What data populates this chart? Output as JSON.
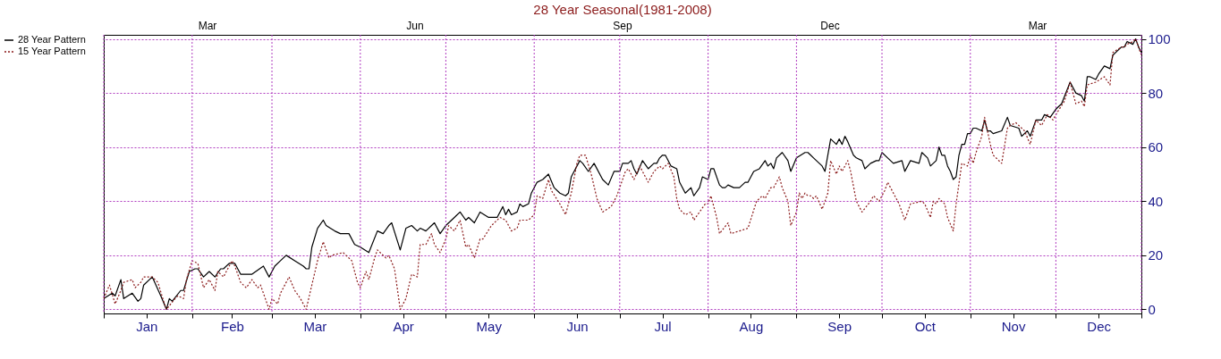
{
  "chart_data": {
    "type": "line",
    "title": "28 Year Seasonal(1981-2008)",
    "xlim": [
      "--01-01",
      "--12-31"
    ],
    "xticks": [
      {
        "value": "--01-01",
        "label": null
      },
      {
        "value": "--01-16",
        "label": "Jan"
      },
      {
        "value": "--02-01",
        "label": null
      },
      {
        "value": "--02-15",
        "label": "Feb"
      },
      {
        "value": "--03-01",
        "label": null
      },
      {
        "value": "--03-16",
        "label": "Mar"
      },
      {
        "value": "--04-01",
        "label": null
      },
      {
        "value": "--04-16",
        "label": "Apr"
      },
      {
        "value": "--05-01",
        "label": null
      },
      {
        "value": "--05-16",
        "label": "May"
      },
      {
        "value": "--06-01",
        "label": null
      },
      {
        "value": "--06-16",
        "label": "Jun"
      },
      {
        "value": "--07-01",
        "label": null
      },
      {
        "value": "--07-16",
        "label": "Jul"
      },
      {
        "value": "--08-01",
        "label": null
      },
      {
        "value": "--08-16",
        "label": "Aug"
      },
      {
        "value": "--09-01",
        "label": null
      },
      {
        "value": "--09-16",
        "label": "Sep"
      },
      {
        "value": "--10-01",
        "label": null
      },
      {
        "value": "--10-16",
        "label": "Oct"
      },
      {
        "value": "--11-01",
        "label": null
      },
      {
        "value": "--11-16",
        "label": "Nov"
      },
      {
        "value": "--12-01",
        "label": null
      },
      {
        "value": "--12-16",
        "label": "Dec"
      },
      {
        "value": "--12-31",
        "label": null
      }
    ],
    "annotations": [
      "Mar",
      "Jun",
      "Sep",
      "Dec",
      "Mar"
    ],
    "ylim": [
      -1.5,
      101.5
    ],
    "yticks": [
      0,
      20,
      40,
      60,
      80,
      100
    ],
    "grid": true,
    "legend": "left",
    "series": [
      {
        "name": "28 Year Pattern",
        "color": "#000000",
        "line_style": "solid",
        "x": [
          "--01-01",
          "--01-04",
          "--01-05",
          "--01-07",
          "--01-08",
          "--01-11",
          "--01-13",
          "--01-14",
          "--01-15",
          "--01-18",
          "--01-21",
          "--01-23",
          "--01-24",
          "--01-25",
          "--01-28",
          "--01-29",
          "--01-31",
          "--02-02",
          "--02-03",
          "--02-05",
          "--02-07",
          "--02-09",
          "--02-11",
          "--02-12",
          "--02-14",
          "--02-16",
          "--02-18",
          "--02-22",
          "--02-26",
          "--02-28",
          "--03-02",
          "--03-04",
          "--03-06",
          "--03-09",
          "--03-12",
          "--03-13",
          "--03-14",
          "--03-15",
          "--03-17",
          "--03-19",
          "--03-20",
          "--03-23",
          "--03-25",
          "--03-28",
          "--03-30",
          "--04-01",
          "--04-04",
          "--04-07",
          "--04-09",
          "--04-11",
          "--04-12",
          "--04-15",
          "--04-17",
          "--04-19",
          "--04-21",
          "--04-22",
          "--04-24",
          "--04-26",
          "--04-27",
          "--04-29",
          "--05-01",
          "--05-04",
          "--05-06",
          "--05-08",
          "--05-09",
          "--05-11",
          "--05-13",
          "--05-16",
          "--05-19",
          "--05-21",
          "--05-22",
          "--05-23",
          "--05-24",
          "--05-26",
          "--05-27",
          "--05-28",
          "--05-30",
          "--05-31",
          "--06-02",
          "--06-04",
          "--06-06",
          "--06-08",
          "--06-10",
          "--06-12",
          "--06-13",
          "--06-14",
          "--06-17",
          "--06-18",
          "--06-20",
          "--06-22",
          "--06-25",
          "--06-27",
          "--06-29",
          "--07-01",
          "--07-02",
          "--07-04",
          "--07-05",
          "--07-06",
          "--07-07",
          "--07-09",
          "--07-11",
          "--07-13",
          "--07-14",
          "--07-15",
          "--07-16",
          "--07-17",
          "--07-19",
          "--07-21",
          "--07-22",
          "--07-24",
          "--07-26",
          "--07-27",
          "--07-29",
          "--07-30",
          "--08-01",
          "--08-02",
          "--08-03",
          "--08-05",
          "--08-06",
          "--08-07",
          "--08-08",
          "--08-10",
          "--08-12",
          "--08-14",
          "--08-15",
          "--08-17",
          "--08-19",
          "--08-21",
          "--08-22",
          "--08-23",
          "--08-24",
          "--08-25",
          "--08-27",
          "--08-29",
          "--08-30",
          "--09-01",
          "--09-04",
          "--09-05",
          "--09-06",
          "--09-07",
          "--09-08",
          "--09-10",
          "--09-11",
          "--09-13",
          "--09-15",
          "--09-16",
          "--09-17",
          "--09-18",
          "--09-19",
          "--09-21",
          "--09-22",
          "--09-24",
          "--09-25",
          "--09-27",
          "--09-29",
          "--09-30",
          "--10-01",
          "--10-03",
          "--10-05",
          "--10-08",
          "--10-09",
          "--10-11",
          "--10-14",
          "--10-15",
          "--10-17",
          "--10-18",
          "--10-20",
          "--10-21",
          "--10-22",
          "--10-23",
          "--10-24",
          "--10-25",
          "--10-26",
          "--10-27",
          "--10-28",
          "--10-29",
          "--10-30",
          "--10-31",
          "--11-01",
          "--11-02",
          "--11-03",
          "--11-05",
          "--11-06",
          "--11-07",
          "--11-08",
          "--11-09",
          "--11-12",
          "--11-14",
          "--11-15",
          "--11-18",
          "--11-19",
          "--11-21",
          "--11-22",
          "--11-24",
          "--11-26",
          "--11-27",
          "--11-29",
          "--12-01",
          "--12-03",
          "--12-06",
          "--12-08",
          "--12-10",
          "--12-11",
          "--12-12",
          "--12-13",
          "--12-15",
          "--12-16",
          "--12-18",
          "--12-20",
          "--12-21",
          "--12-24",
          "--12-25",
          "--12-26",
          "--12-28",
          "--12-29",
          "--12-30",
          "--12-31"
        ],
        "values": [
          4,
          6,
          5,
          11,
          4,
          6,
          3,
          4,
          9,
          12,
          5,
          0,
          4,
          3,
          7,
          7,
          14,
          15,
          15,
          12,
          14,
          12,
          15,
          15,
          17,
          17,
          13,
          13,
          16,
          12,
          16,
          18,
          20,
          18,
          16,
          15,
          15,
          23,
          30,
          33,
          31,
          29,
          28,
          28,
          24,
          23,
          21,
          29,
          28,
          31,
          32,
          22,
          30,
          31,
          29,
          30,
          29,
          31,
          32,
          28,
          31,
          34,
          36,
          33,
          34,
          32,
          36,
          34,
          34,
          38,
          35,
          37,
          35,
          36,
          39,
          38,
          39,
          43,
          47,
          48,
          50,
          45,
          43,
          42,
          43,
          49,
          55,
          54,
          51,
          54,
          48,
          46,
          51,
          51,
          54,
          54,
          55,
          52,
          50,
          55,
          52,
          54,
          54,
          56,
          57,
          57,
          53,
          52,
          47,
          43,
          45,
          42,
          45,
          49,
          48,
          52,
          52,
          46,
          45,
          45,
          46,
          45,
          45,
          47,
          47,
          51,
          52,
          55,
          53,
          54,
          52,
          56,
          58,
          55,
          51,
          56,
          58,
          58,
          57,
          56,
          55,
          53,
          51,
          63,
          61,
          63,
          61,
          64,
          62,
          57,
          56,
          55,
          52,
          54,
          55,
          55,
          58,
          56,
          54,
          55,
          51,
          55,
          54,
          58,
          56,
          53,
          55,
          60,
          57,
          57,
          53,
          51,
          48,
          49,
          57,
          61,
          61,
          65,
          65,
          67,
          67,
          66,
          70,
          66,
          66,
          65,
          66,
          71,
          68,
          67,
          64,
          66,
          64,
          70,
          70,
          72,
          71,
          74,
          76,
          84,
          80,
          79,
          77,
          86,
          86,
          85,
          87,
          90,
          89,
          94,
          97,
          97,
          99,
          98,
          100,
          97,
          95
        ]
      },
      {
        "name": "15 Year Pattern",
        "color": "#8b1a1a",
        "line_style": "dotted",
        "x": [
          "--01-01",
          "--01-03",
          "--01-05",
          "--01-07",
          "--01-08",
          "--01-11",
          "--01-12",
          "--01-14",
          "--01-15",
          "--01-18",
          "--01-20",
          "--01-22",
          "--01-23",
          "--01-26",
          "--01-27",
          "--01-29",
          "--01-30",
          "--02-01",
          "--02-03",
          "--02-05",
          "--02-07",
          "--02-09",
          "--02-10",
          "--02-12",
          "--02-13",
          "--02-15",
          "--02-16",
          "--02-18",
          "--02-20",
          "--02-22",
          "--02-24",
          "--02-25",
          "--02-27",
          "--02-28",
          "--03-01",
          "--03-03",
          "--03-04",
          "--03-07",
          "--03-09",
          "--03-11",
          "--03-13",
          "--03-15",
          "--03-17",
          "--03-19",
          "--03-21",
          "--03-22",
          "--03-26",
          "--03-29",
          "--03-31",
          "--04-01",
          "--04-03",
          "--04-04",
          "--04-06",
          "--04-07",
          "--04-10",
          "--04-11",
          "--04-13",
          "--04-15",
          "--04-17",
          "--04-19",
          "--04-21",
          "--04-22",
          "--04-24",
          "--04-26",
          "--04-27",
          "--04-29",
          "--05-01",
          "--05-02",
          "--05-04",
          "--05-06",
          "--05-08",
          "--05-09",
          "--05-11",
          "--05-13",
          "--05-14",
          "--05-17",
          "--05-20",
          "--05-22",
          "--05-24",
          "--05-26",
          "--05-27",
          "--05-30",
          "--06-01",
          "--06-02",
          "--06-04",
          "--06-06",
          "--06-07",
          "--06-10",
          "--06-12",
          "--06-14",
          "--06-16",
          "--06-17",
          "--06-19",
          "--06-21",
          "--06-23",
          "--06-25",
          "--06-28",
          "--06-30",
          "--07-01",
          "--07-03",
          "--07-04",
          "--07-06",
          "--07-08",
          "--07-11",
          "--07-13",
          "--07-15",
          "--07-16",
          "--07-18",
          "--07-20",
          "--07-21",
          "--07-22",
          "--07-24",
          "--07-26",
          "--07-27",
          "--07-29",
          "--07-31",
          "--08-01",
          "--08-02",
          "--08-04",
          "--08-05",
          "--08-08",
          "--08-09",
          "--08-12",
          "--08-15",
          "--08-18",
          "--08-20",
          "--08-21",
          "--08-23",
          "--08-24",
          "--08-26",
          "--08-27",
          "--08-29",
          "--08-30",
          "--09-01",
          "--09-02",
          "--09-03",
          "--09-04",
          "--09-05",
          "--09-06",
          "--09-07",
          "--09-08",
          "--09-10",
          "--09-12",
          "--09-13",
          "--09-15",
          "--09-16",
          "--09-17",
          "--09-19",
          "--09-20",
          "--09-22",
          "--09-24",
          "--09-27",
          "--09-28",
          "--09-30",
          "--10-02",
          "--10-03",
          "--10-05",
          "--10-07",
          "--10-09",
          "--10-11",
          "--10-15",
          "--10-16",
          "--10-18",
          "--10-19",
          "--10-20",
          "--10-21",
          "--10-23",
          "--10-24",
          "--10-26",
          "--10-27",
          "--10-29",
          "--10-31",
          "--11-01",
          "--11-02",
          "--11-03",
          "--11-05",
          "--11-06",
          "--11-08",
          "--11-09",
          "--11-12",
          "--11-14",
          "--11-15",
          "--11-17",
          "--11-19",
          "--11-20",
          "--11-22",
          "--11-24",
          "--11-26",
          "--11-28",
          "--11-30",
          "--12-01",
          "--12-04",
          "--12-06",
          "--12-08",
          "--12-10",
          "--12-11",
          "--12-12",
          "--12-15",
          "--12-18",
          "--12-20",
          "--12-21",
          "--12-24",
          "--12-25",
          "--12-26",
          "--12-28",
          "--12-29",
          "--12-30",
          "--12-31"
        ],
        "values": [
          4,
          9,
          2,
          7,
          10,
          11,
          8,
          10,
          12,
          12,
          10,
          3,
          0,
          4,
          5,
          4,
          11,
          18,
          17,
          8,
          11,
          7,
          14,
          12,
          14,
          18,
          16,
          10,
          8,
          11,
          8,
          9,
          3,
          0,
          4,
          2,
          6,
          12,
          7,
          4,
          0,
          9,
          18,
          25,
          19,
          20,
          21,
          18,
          10,
          8,
          14,
          11,
          19,
          22,
          19,
          20,
          15,
          0,
          4,
          13,
          12,
          24,
          24,
          28,
          24,
          21,
          26,
          31,
          29,
          33,
          23,
          24,
          19,
          26,
          26,
          31,
          34,
          33,
          29,
          30,
          33,
          33,
          35,
          42,
          41,
          48,
          44,
          39,
          35,
          43,
          54,
          57,
          57,
          50,
          41,
          36,
          38,
          42,
          45,
          51,
          52,
          48,
          53,
          47,
          51,
          53,
          52,
          54,
          49,
          41,
          37,
          35,
          36,
          33,
          36,
          39,
          39,
          42,
          34,
          28,
          32,
          28,
          29,
          30,
          40,
          42,
          41,
          45,
          45,
          49,
          45,
          40,
          31,
          36,
          43,
          41,
          43,
          42,
          42,
          41,
          42,
          37,
          43,
          55,
          50,
          53,
          51,
          55,
          51,
          40,
          36,
          40,
          42,
          40,
          44,
          47,
          43,
          39,
          33,
          39,
          40,
          39,
          34,
          40,
          39,
          41,
          39,
          34,
          29,
          39,
          54,
          53,
          57,
          54,
          58,
          64,
          71,
          61,
          57,
          54,
          67,
          68,
          69,
          67,
          66,
          61,
          70,
          68,
          72,
          70,
          72,
          77,
          84,
          76,
          77,
          75,
          83,
          84,
          86,
          83,
          95,
          97,
          97,
          98,
          99,
          100,
          97,
          94
        ]
      }
    ]
  }
}
